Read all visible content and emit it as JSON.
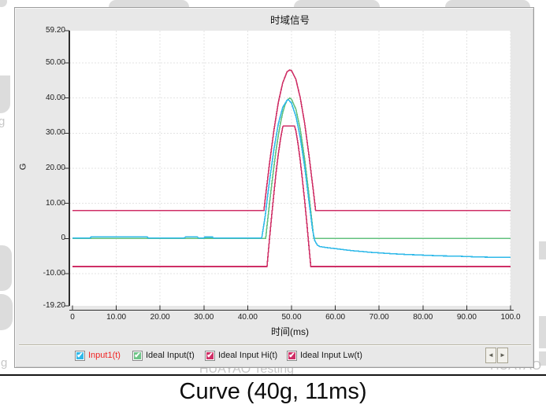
{
  "caption": "Curve (40g, 11ms)",
  "watermarks": {
    "center": "HUAYAO Testing",
    "right": "HUAYAO",
    "left_top_fragment": "g",
    "left_bottom_fragment": "g"
  },
  "legend": {
    "items": [
      {
        "label": "Input1(t)",
        "box_color": "#31b8e8",
        "label_color": "#f02222",
        "checked": true
      },
      {
        "label": "Ideal Input(t)",
        "box_color": "#6ec487",
        "label_color": "#1a1a1a",
        "checked": true
      },
      {
        "label": "Ideal Input Hi(t)",
        "box_color": "#cf2f66",
        "label_color": "#1a1a1a",
        "checked": true
      },
      {
        "label": "Ideal Input Lw(t)",
        "box_color": "#cf2f66",
        "label_color": "#1a1a1a",
        "checked": true
      }
    ],
    "check_glyph": "✔",
    "prev_button": "◄",
    "next_button": "►"
  },
  "chart_data": {
    "type": "line",
    "title": "时域信号",
    "xlabel": "时间(ms)",
    "ylabel": "G",
    "xlim": [
      0,
      100
    ],
    "ylim": [
      -19.2,
      59.2
    ],
    "grid": true,
    "legend_position": "bottom",
    "x_ticks": [
      0,
      10,
      20,
      30,
      40,
      50,
      60,
      70,
      80,
      90,
      100
    ],
    "x_tick_labels": [
      "0",
      "10.00",
      "20.00",
      "30.00",
      "40.00",
      "50.00",
      "60.00",
      "70.00",
      "80.00",
      "90.00",
      "100.0"
    ],
    "y_ticks": [
      59.2,
      50,
      40,
      30,
      20,
      10,
      0,
      -10,
      -19.2
    ],
    "y_tick_labels": [
      "59.20",
      "50.00",
      "40.00",
      "30.00",
      "20.00",
      "10.00",
      "0",
      "-10.00",
      "-19.20"
    ],
    "series": [
      {
        "name": "Ideal Input(t)",
        "color": "#62c17e",
        "description": "ideal half-sine pulse, peak 40 g at 50 ms, duration 11 ms",
        "points": [
          [
            0,
            0
          ],
          [
            44.1,
            0
          ],
          [
            44.5,
            4.6
          ],
          [
            45,
            10.2
          ],
          [
            45.5,
            15.6
          ],
          [
            46,
            20.7
          ],
          [
            46.5,
            25.3
          ],
          [
            47,
            29.4
          ],
          [
            47.5,
            33
          ],
          [
            48,
            35.9
          ],
          [
            48.5,
            38
          ],
          [
            49,
            39.4
          ],
          [
            49.6,
            40
          ],
          [
            50,
            39.7
          ],
          [
            51,
            36.8
          ],
          [
            52,
            31.1
          ],
          [
            53,
            22.6
          ],
          [
            54,
            12.3
          ],
          [
            55,
            1.1
          ],
          [
            55.1,
            0
          ],
          [
            100,
            0
          ]
        ]
      },
      {
        "name": "Input1(t)",
        "color": "#2fb9e9",
        "description": "measured response, peak ~39.5 g, drifts to ~-5.4 g after pulse",
        "points": [
          [
            0,
            0.1
          ],
          [
            4,
            0.1
          ],
          [
            4.3,
            0.5
          ],
          [
            17,
            0.5
          ],
          [
            17.3,
            0.1
          ],
          [
            25.5,
            0.1
          ],
          [
            25.8,
            0.45
          ],
          [
            28.5,
            0.45
          ],
          [
            28.8,
            0.1
          ],
          [
            30,
            0.1
          ],
          [
            30.2,
            0.4
          ],
          [
            32,
            0.4
          ],
          [
            32.2,
            0.1
          ],
          [
            43.2,
            0.1
          ],
          [
            44,
            6.4
          ],
          [
            44.5,
            11.6
          ],
          [
            45,
            16.6
          ],
          [
            46,
            25.6
          ],
          [
            47,
            32.7
          ],
          [
            48,
            37.4
          ],
          [
            49,
            39.4
          ],
          [
            49.3,
            39.5
          ],
          [
            50,
            38.6
          ],
          [
            51,
            34.8
          ],
          [
            52,
            28.7
          ],
          [
            53,
            20.4
          ],
          [
            54,
            10.5
          ],
          [
            54.8,
            2.5
          ],
          [
            55.3,
            -0.6
          ],
          [
            55.9,
            -1.9
          ],
          [
            56.5,
            -2.3
          ],
          [
            58,
            -2.6
          ],
          [
            60,
            -2.9
          ],
          [
            62,
            -3.2
          ],
          [
            64,
            -3.5
          ],
          [
            66,
            -3.7
          ],
          [
            68,
            -3.95
          ],
          [
            70,
            -4.1
          ],
          [
            73,
            -4.35
          ],
          [
            76,
            -4.55
          ],
          [
            80,
            -4.75
          ],
          [
            84,
            -4.95
          ],
          [
            88,
            -5.05
          ],
          [
            92,
            -5.25
          ],
          [
            96,
            -5.35
          ],
          [
            100,
            -5.4
          ]
        ]
      },
      {
        "name": "Ideal Input Hi(t)",
        "color": "#cf2f66",
        "description": "upper tolerance envelope, baseline +8 g, peak 48 g",
        "points": [
          [
            0,
            8
          ],
          [
            43.7,
            8
          ],
          [
            44,
            11.2
          ],
          [
            45,
            21.6
          ],
          [
            46,
            31
          ],
          [
            47,
            38.8
          ],
          [
            48,
            44.4
          ],
          [
            49,
            47.5
          ],
          [
            49.6,
            48
          ],
          [
            50,
            47.8
          ],
          [
            51,
            45.3
          ],
          [
            52,
            40.1
          ],
          [
            53,
            32.8
          ],
          [
            54,
            23.6
          ],
          [
            55,
            13.4
          ],
          [
            55.5,
            8
          ],
          [
            100,
            8
          ]
        ]
      },
      {
        "name": "Ideal Input Lw(t)",
        "color": "#cf2f66",
        "description": "lower tolerance envelope, baseline -8 g, clipped top 32 g",
        "points": [
          [
            0,
            -8
          ],
          [
            44.4,
            -8
          ],
          [
            45,
            0.2
          ],
          [
            45.5,
            6.9
          ],
          [
            46,
            13.2
          ],
          [
            46.5,
            19
          ],
          [
            47,
            24.1
          ],
          [
            47.5,
            28.4
          ],
          [
            48,
            31.8
          ],
          [
            48.1,
            32
          ],
          [
            50.7,
            32
          ],
          [
            51,
            30.6
          ],
          [
            51.5,
            26.9
          ],
          [
            52,
            22.2
          ],
          [
            52.5,
            16.6
          ],
          [
            53,
            10.7
          ],
          [
            53.5,
            4.3
          ],
          [
            54,
            -2.5
          ],
          [
            54.4,
            -8
          ],
          [
            100,
            -8
          ]
        ]
      }
    ]
  }
}
